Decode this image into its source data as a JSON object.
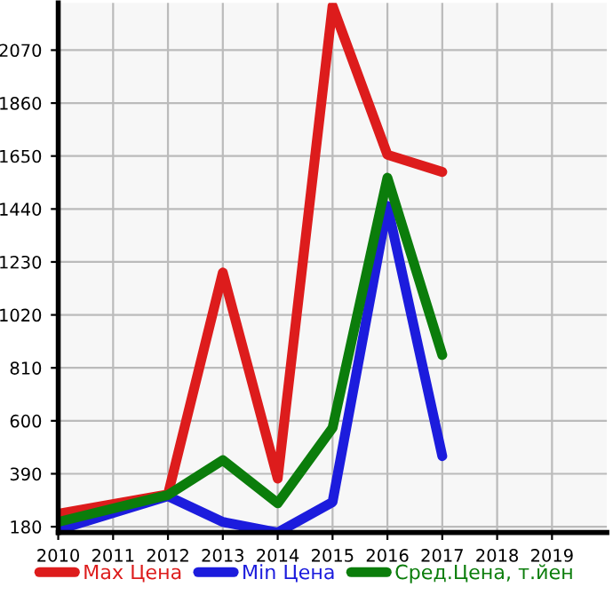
{
  "chart_data": {
    "type": "line",
    "x": [
      2010,
      2012,
      2013,
      2014,
      2015,
      2016,
      2017
    ],
    "series": [
      {
        "name": "Max Цена",
        "color": "#dd1c1c",
        "values": [
          231,
          308,
          1188,
          371,
          2245,
          1655,
          1587
        ]
      },
      {
        "name": "Min Цена",
        "color": "#1c1cdd",
        "values": [
          168,
          301,
          199,
          157,
          278,
          1452,
          460
        ]
      },
      {
        "name": "Сред.Цена, т.йен",
        "color": "#0b7d0b",
        "values": [
          199,
          306,
          444,
          273,
          572,
          1564,
          861
        ]
      }
    ],
    "xlim": [
      2010,
      2020
    ],
    "xticks": [
      2010,
      2011,
      2012,
      2013,
      2014,
      2015,
      2016,
      2017,
      2018,
      2019
    ],
    "ylim": [
      157,
      2257
    ],
    "yticks": [
      180,
      390,
      600,
      810,
      1020,
      1230,
      1440,
      1650,
      1860,
      2070
    ],
    "grid": true,
    "legend": "bottom",
    "marker": "none",
    "line_style": "solid"
  }
}
